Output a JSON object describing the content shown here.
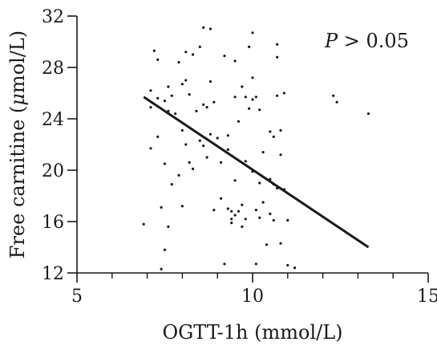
{
  "chart_data": {
    "type": "scatter",
    "title": "",
    "xlabel": "OGTT-1h (mmol/L)",
    "ylabel_prefix": "Free carnitine (",
    "ylabel_mu": "μ",
    "ylabel_suffix": "mol/L)",
    "xlim": [
      5,
      15
    ],
    "ylim": [
      12,
      32
    ],
    "xticks": [
      5,
      10,
      15
    ],
    "xticks_minor": [
      6,
      7,
      8,
      9,
      11,
      12,
      13,
      14
    ],
    "yticks": [
      12,
      16,
      20,
      24,
      28,
      32
    ],
    "annotation": {
      "symbol": "P",
      "text": " > 0.05"
    },
    "grid": false,
    "colors": {
      "axis": "#1a1a1a",
      "points": "#1a1a1a",
      "trend": "#1a1a1a"
    },
    "trend_line": {
      "x": [
        6.9,
        13.3
      ],
      "y": [
        25.7,
        14.0
      ]
    },
    "points": [
      [
        6.9,
        15.8
      ],
      [
        7.1,
        26.2
      ],
      [
        7.1,
        24.9
      ],
      [
        7.1,
        21.7
      ],
      [
        7.2,
        29.3
      ],
      [
        7.3,
        28.6
      ],
      [
        7.3,
        25.6
      ],
      [
        7.3,
        22.6
      ],
      [
        7.4,
        12.3
      ],
      [
        7.4,
        17.1
      ],
      [
        7.5,
        25.4
      ],
      [
        7.5,
        20.5
      ],
      [
        7.5,
        13.8
      ],
      [
        7.6,
        26.5
      ],
      [
        7.6,
        24.6
      ],
      [
        7.6,
        15.6
      ],
      [
        7.7,
        25.8
      ],
      [
        7.7,
        18.9
      ],
      [
        7.8,
        24.4
      ],
      [
        7.9,
        28.4
      ],
      [
        7.9,
        19.6
      ],
      [
        8.0,
        26.7
      ],
      [
        8.0,
        23.1
      ],
      [
        8.0,
        17.2
      ],
      [
        8.1,
        29.2
      ],
      [
        8.1,
        27.0
      ],
      [
        8.1,
        22.0
      ],
      [
        8.2,
        25.9
      ],
      [
        8.2,
        20.6
      ],
      [
        8.3,
        29.0
      ],
      [
        8.3,
        20.1
      ],
      [
        8.4,
        24.6
      ],
      [
        8.5,
        29.6
      ],
      [
        8.5,
        22.3
      ],
      [
        8.6,
        31.1
      ],
      [
        8.6,
        25.1
      ],
      [
        8.6,
        21.9
      ],
      [
        8.7,
        24.9
      ],
      [
        8.7,
        21.0
      ],
      [
        8.8,
        31.0
      ],
      [
        8.8,
        26.9
      ],
      [
        8.8,
        22.8
      ],
      [
        8.9,
        25.3
      ],
      [
        8.9,
        16.9
      ],
      [
        9.0,
        22.5
      ],
      [
        9.1,
        20.6
      ],
      [
        9.1,
        17.8
      ],
      [
        9.2,
        28.9
      ],
      [
        9.2,
        12.7
      ],
      [
        9.3,
        22.7
      ],
      [
        9.3,
        21.6
      ],
      [
        9.3,
        17.0
      ],
      [
        9.4,
        16.8
      ],
      [
        9.4,
        16.2
      ],
      [
        9.4,
        15.9
      ],
      [
        9.5,
        28.5
      ],
      [
        9.5,
        25.7
      ],
      [
        9.5,
        19.2
      ],
      [
        9.5,
        16.5
      ],
      [
        9.6,
        23.8
      ],
      [
        9.6,
        16.8
      ],
      [
        9.7,
        26.5
      ],
      [
        9.7,
        17.3
      ],
      [
        9.7,
        15.6
      ],
      [
        9.8,
        25.7
      ],
      [
        9.8,
        20.7
      ],
      [
        9.8,
        16.2
      ],
      [
        9.9,
        29.6
      ],
      [
        9.9,
        24.8
      ],
      [
        10.0,
        30.7
      ],
      [
        10.0,
        27.2
      ],
      [
        10.0,
        25.5
      ],
      [
        10.0,
        19.9
      ],
      [
        10.1,
        25.7
      ],
      [
        10.1,
        16.9
      ],
      [
        10.1,
        12.7
      ],
      [
        10.2,
        24.7
      ],
      [
        10.2,
        19.0
      ],
      [
        10.2,
        16.3
      ],
      [
        10.3,
        21.4
      ],
      [
        10.3,
        17.5
      ],
      [
        10.4,
        14.2
      ],
      [
        10.5,
        23.0
      ],
      [
        10.5,
        19.3
      ],
      [
        10.5,
        16.6
      ],
      [
        10.6,
        22.6
      ],
      [
        10.6,
        18.9
      ],
      [
        10.6,
        16.1
      ],
      [
        10.7,
        29.8
      ],
      [
        10.7,
        28.8
      ],
      [
        10.7,
        25.8
      ],
      [
        10.7,
        18.6
      ],
      [
        10.8,
        23.1
      ],
      [
        10.8,
        21.2
      ],
      [
        10.8,
        14.3
      ],
      [
        10.9,
        26.0
      ],
      [
        10.9,
        18.5
      ],
      [
        11.0,
        16.1
      ],
      [
        11.0,
        12.6
      ],
      [
        11.2,
        12.4
      ],
      [
        12.3,
        25.8
      ],
      [
        12.4,
        25.3
      ],
      [
        13.3,
        24.4
      ]
    ]
  }
}
